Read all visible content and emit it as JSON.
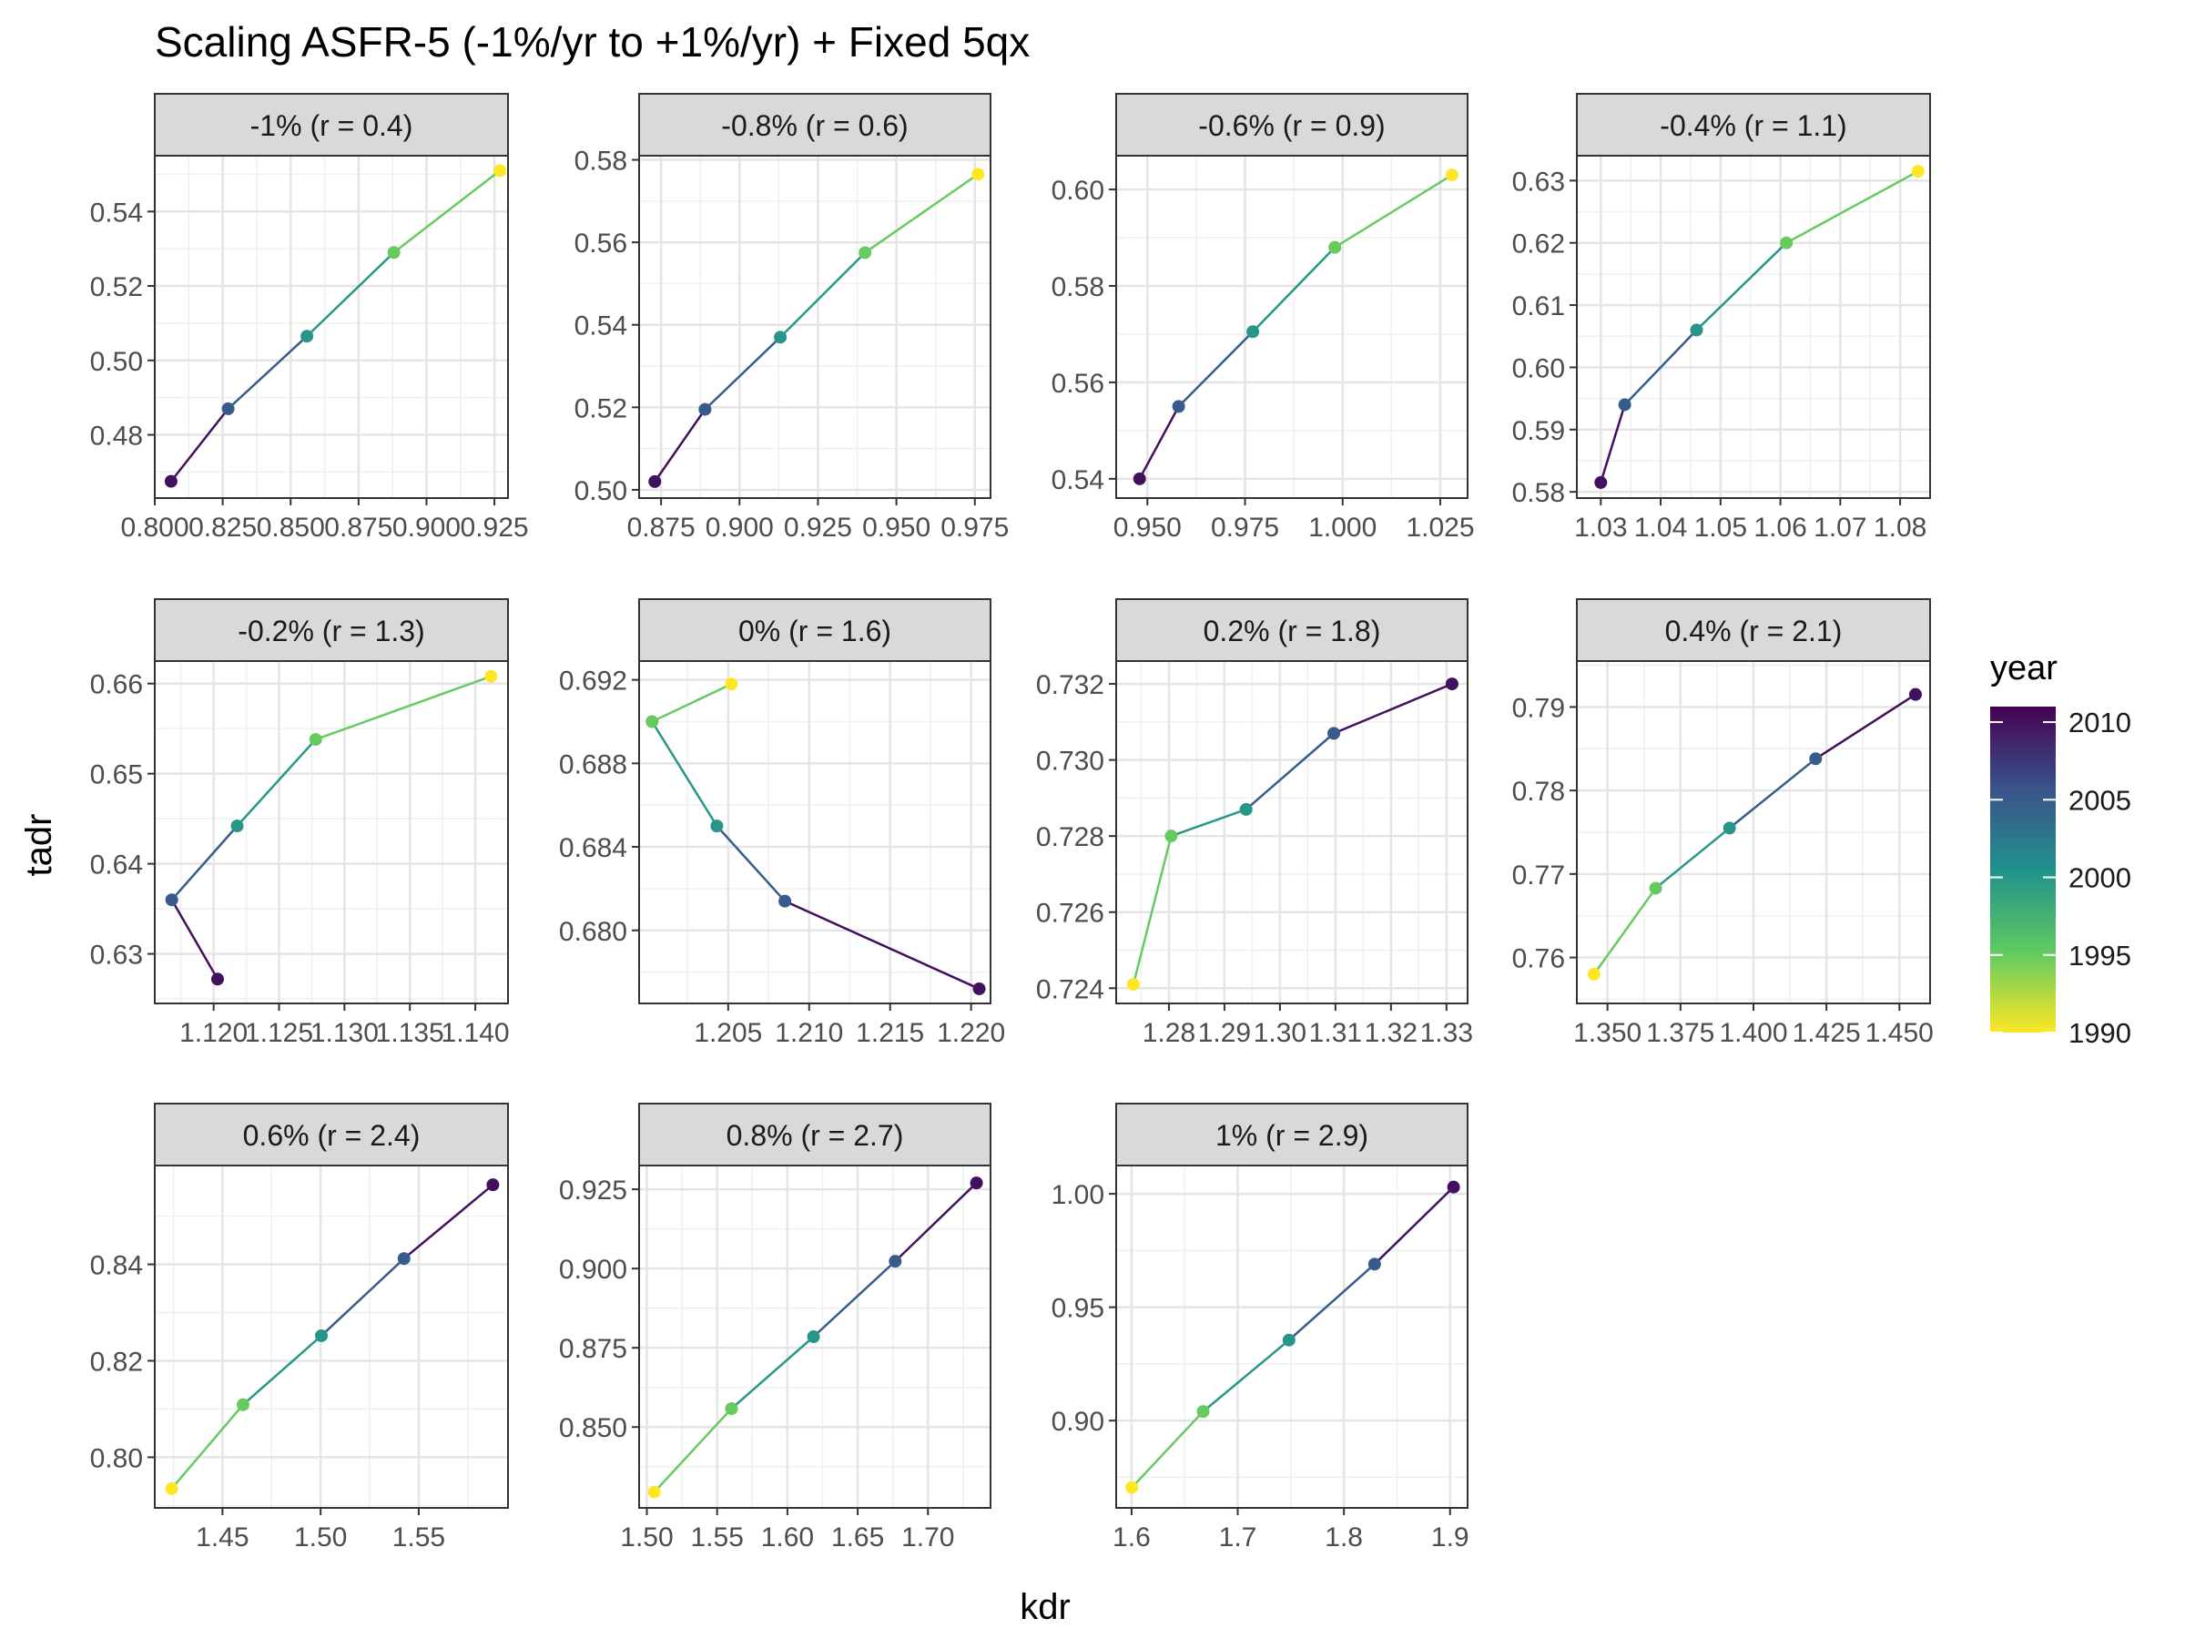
{
  "chart_data": {
    "type": "line",
    "title": "Scaling ASFR-5 (-1%/yr to +1%/yr) + Fixed 5qx",
    "xlabel": "kdr",
    "ylabel": "tadr",
    "legend": {
      "title": "year",
      "position": "right",
      "ticks": [
        2010,
        2005,
        2000,
        1995,
        1990
      ],
      "range": [
        1990,
        2011
      ],
      "palette": [
        "#440154",
        "#3b528b",
        "#21918c",
        "#5ec962",
        "#fde725"
      ]
    },
    "grid": true,
    "panels": [
      {
        "label": "-1% (r = 0.4)",
        "xticks": [
          "0.800",
          "0.825",
          "0.850",
          "0.875",
          "0.900",
          "0.925"
        ],
        "xtick_values": [
          0.8,
          0.825,
          0.85,
          0.875,
          0.9,
          0.925
        ],
        "xlim": [
          0.8,
          0.93
        ],
        "yticks": [
          "0.48",
          "0.50",
          "0.52",
          "0.54"
        ],
        "ytick_values": [
          0.48,
          0.5,
          0.52,
          0.54
        ],
        "ylim": [
          0.463,
          0.555
        ],
        "points": [
          {
            "x": 0.806,
            "y": 0.4675,
            "year": 2010
          },
          {
            "x": 0.827,
            "y": 0.487,
            "year": 2005
          },
          {
            "x": 0.856,
            "y": 0.5065,
            "year": 2000
          },
          {
            "x": 0.888,
            "y": 0.529,
            "year": 1995
          },
          {
            "x": 0.927,
            "y": 0.551,
            "year": 1990
          }
        ]
      },
      {
        "label": "-0.8% (r = 0.6)",
        "xticks": [
          "0.875",
          "0.900",
          "0.925",
          "0.950",
          "0.975"
        ],
        "xtick_values": [
          0.875,
          0.9,
          0.925,
          0.95,
          0.975
        ],
        "xlim": [
          0.868,
          0.98
        ],
        "yticks": [
          "0.50",
          "0.52",
          "0.54",
          "0.56",
          "0.58"
        ],
        "ytick_values": [
          0.5,
          0.52,
          0.54,
          0.56,
          0.58
        ],
        "ylim": [
          0.498,
          0.581
        ],
        "points": [
          {
            "x": 0.873,
            "y": 0.502,
            "year": 2010
          },
          {
            "x": 0.889,
            "y": 0.5195,
            "year": 2005
          },
          {
            "x": 0.913,
            "y": 0.537,
            "year": 2000
          },
          {
            "x": 0.94,
            "y": 0.5575,
            "year": 1995
          },
          {
            "x": 0.976,
            "y": 0.5765,
            "year": 1990
          }
        ]
      },
      {
        "label": "-0.6% (r = 0.9)",
        "xticks": [
          "0.950",
          "0.975",
          "1.000",
          "1.025"
        ],
        "xtick_values": [
          0.95,
          0.975,
          1.0,
          1.025
        ],
        "xlim": [
          0.942,
          1.032
        ],
        "yticks": [
          "0.54",
          "0.56",
          "0.58",
          "0.60"
        ],
        "ytick_values": [
          0.54,
          0.56,
          0.58,
          0.6
        ],
        "ylim": [
          0.536,
          0.607
        ],
        "points": [
          {
            "x": 0.948,
            "y": 0.54,
            "year": 2010
          },
          {
            "x": 0.958,
            "y": 0.555,
            "year": 2005
          },
          {
            "x": 0.977,
            "y": 0.5705,
            "year": 2000
          },
          {
            "x": 0.998,
            "y": 0.588,
            "year": 1995
          },
          {
            "x": 1.028,
            "y": 0.603,
            "year": 1990
          }
        ]
      },
      {
        "label": "-0.4% (r = 1.1)",
        "xticks": [
          "1.03",
          "1.04",
          "1.05",
          "1.06",
          "1.07",
          "1.08"
        ],
        "xtick_values": [
          1.03,
          1.04,
          1.05,
          1.06,
          1.07,
          1.08
        ],
        "xlim": [
          1.026,
          1.085
        ],
        "yticks": [
          "0.58",
          "0.59",
          "0.60",
          "0.61",
          "0.62",
          "0.63"
        ],
        "ytick_values": [
          0.58,
          0.59,
          0.6,
          0.61,
          0.62,
          0.63
        ],
        "ylim": [
          0.579,
          0.634
        ],
        "points": [
          {
            "x": 1.03,
            "y": 0.5815,
            "year": 2010
          },
          {
            "x": 1.034,
            "y": 0.594,
            "year": 2005
          },
          {
            "x": 1.046,
            "y": 0.606,
            "year": 2000
          },
          {
            "x": 1.061,
            "y": 0.62,
            "year": 1995
          },
          {
            "x": 1.083,
            "y": 0.6315,
            "year": 1990
          }
        ]
      },
      {
        "label": "-0.2% (r = 1.3)",
        "xticks": [
          "1.120",
          "1.125",
          "1.130",
          "1.135",
          "1.140"
        ],
        "xtick_values": [
          1.12,
          1.125,
          1.13,
          1.135,
          1.14
        ],
        "xlim": [
          1.1155,
          1.1425
        ],
        "yticks": [
          "0.63",
          "0.64",
          "0.65",
          "0.66"
        ],
        "ytick_values": [
          0.63,
          0.64,
          0.65,
          0.66
        ],
        "ylim": [
          0.6245,
          0.6625
        ],
        "points": [
          {
            "x": 1.1203,
            "y": 0.6272,
            "year": 2010
          },
          {
            "x": 1.1168,
            "y": 0.636,
            "year": 2005
          },
          {
            "x": 1.1218,
            "y": 0.6442,
            "year": 2000
          },
          {
            "x": 1.1278,
            "y": 0.6538,
            "year": 1995
          },
          {
            "x": 1.1412,
            "y": 0.6608,
            "year": 1990
          }
        ]
      },
      {
        "label": "0% (r = 1.6)",
        "xticks": [
          "1.205",
          "1.210",
          "1.215",
          "1.220"
        ],
        "xtick_values": [
          1.205,
          1.21,
          1.215,
          1.22
        ],
        "xlim": [
          1.1995,
          1.2212
        ],
        "yticks": [
          "0.680",
          "0.684",
          "0.688",
          "0.692"
        ],
        "ytick_values": [
          0.68,
          0.684,
          0.688,
          0.692
        ],
        "ylim": [
          0.6765,
          0.6929
        ],
        "points": [
          {
            "x": 1.2205,
            "y": 0.6772,
            "year": 2010
          },
          {
            "x": 1.2085,
            "y": 0.6814,
            "year": 2005
          },
          {
            "x": 1.2043,
            "y": 0.685,
            "year": 2000
          },
          {
            "x": 1.2003,
            "y": 0.69,
            "year": 1995
          },
          {
            "x": 1.2052,
            "y": 0.6918,
            "year": 1990
          }
        ]
      },
      {
        "label": "0.2% (r = 1.8)",
        "xticks": [
          "1.28",
          "1.29",
          "1.30",
          "1.31",
          "1.32",
          "1.33"
        ],
        "xtick_values": [
          1.28,
          1.29,
          1.3,
          1.31,
          1.32,
          1.33
        ],
        "xlim": [
          1.2705,
          1.3338
        ],
        "yticks": [
          "0.724",
          "0.726",
          "0.728",
          "0.730",
          "0.732"
        ],
        "ytick_values": [
          0.724,
          0.726,
          0.728,
          0.73,
          0.732
        ],
        "ylim": [
          0.7236,
          0.7326
        ],
        "points": [
          {
            "x": 1.331,
            "y": 0.732,
            "year": 2010
          },
          {
            "x": 1.3097,
            "y": 0.7307,
            "year": 2005
          },
          {
            "x": 1.2939,
            "y": 0.7287,
            "year": 2000
          },
          {
            "x": 1.2804,
            "y": 0.728,
            "year": 1995
          },
          {
            "x": 1.2736,
            "y": 0.7241,
            "year": 1990
          }
        ]
      },
      {
        "label": "0.4% (r = 2.1)",
        "xticks": [
          "1.350",
          "1.375",
          "1.400",
          "1.425",
          "1.450"
        ],
        "xtick_values": [
          1.35,
          1.375,
          1.4,
          1.425,
          1.45
        ],
        "xlim": [
          1.3395,
          1.4605
        ],
        "yticks": [
          "0.76",
          "0.77",
          "0.78",
          "0.79"
        ],
        "ytick_values": [
          0.76,
          0.77,
          0.78,
          0.79
        ],
        "ylim": [
          0.7545,
          0.7955
        ],
        "points": [
          {
            "x": 1.4555,
            "y": 0.7915,
            "year": 2010
          },
          {
            "x": 1.4213,
            "y": 0.7838,
            "year": 2005
          },
          {
            "x": 1.3918,
            "y": 0.7755,
            "year": 2000
          },
          {
            "x": 1.3665,
            "y": 0.7683,
            "year": 1995
          },
          {
            "x": 1.3454,
            "y": 0.758,
            "year": 1990
          }
        ]
      },
      {
        "label": "0.6% (r = 2.4)",
        "xticks": [
          "1.45",
          "1.50",
          "1.55"
        ],
        "xtick_values": [
          1.45,
          1.5,
          1.55
        ],
        "xlim": [
          1.4155,
          1.5955
        ],
        "yticks": [
          "0.80",
          "0.82",
          "0.84"
        ],
        "ytick_values": [
          0.8,
          0.82,
          0.84
        ],
        "ylim": [
          0.7895,
          0.8605
        ],
        "points": [
          {
            "x": 1.5878,
            "y": 0.8565,
            "year": 2010
          },
          {
            "x": 1.5425,
            "y": 0.8412,
            "year": 2005
          },
          {
            "x": 1.5004,
            "y": 0.8252,
            "year": 2000
          },
          {
            "x": 1.4605,
            "y": 0.8109,
            "year": 1995
          },
          {
            "x": 1.4241,
            "y": 0.7935,
            "year": 1990
          }
        ]
      },
      {
        "label": "0.8% (r = 2.7)",
        "xticks": [
          "1.50",
          "1.55",
          "1.60",
          "1.65",
          "1.70"
        ],
        "xtick_values": [
          1.5,
          1.55,
          1.6,
          1.65,
          1.7
        ],
        "xlim": [
          1.4945,
          1.7445
        ],
        "yticks": [
          "0.850",
          "0.875",
          "0.900",
          "0.925"
        ],
        "ytick_values": [
          0.85,
          0.875,
          0.9,
          0.925
        ],
        "ylim": [
          0.8245,
          0.9325
        ],
        "points": [
          {
            "x": 1.7345,
            "y": 0.927,
            "year": 2010
          },
          {
            "x": 1.6767,
            "y": 0.9023,
            "year": 2005
          },
          {
            "x": 1.6186,
            "y": 0.8785,
            "year": 2000
          },
          {
            "x": 1.5602,
            "y": 0.8558,
            "year": 1995
          },
          {
            "x": 1.5053,
            "y": 0.8295,
            "year": 1990
          }
        ]
      },
      {
        "label": "1% (r = 2.9)",
        "xticks": [
          "1.6",
          "1.7",
          "1.8",
          "1.9"
        ],
        "xtick_values": [
          1.6,
          1.7,
          1.8,
          1.9
        ],
        "xlim": [
          1.5855,
          1.9165
        ],
        "yticks": [
          "0.90",
          "0.95",
          "1.00"
        ],
        "ytick_values": [
          0.9,
          0.95,
          1.0
        ],
        "ylim": [
          0.8615,
          1.0125
        ],
        "points": [
          {
            "x": 1.9033,
            "y": 1.003,
            "year": 2010
          },
          {
            "x": 1.8289,
            "y": 0.969,
            "year": 2005
          },
          {
            "x": 1.7483,
            "y": 0.9355,
            "year": 2000
          },
          {
            "x": 1.6674,
            "y": 0.904,
            "year": 1995
          },
          {
            "x": 1.6003,
            "y": 0.8705,
            "year": 1990
          }
        ]
      }
    ]
  }
}
